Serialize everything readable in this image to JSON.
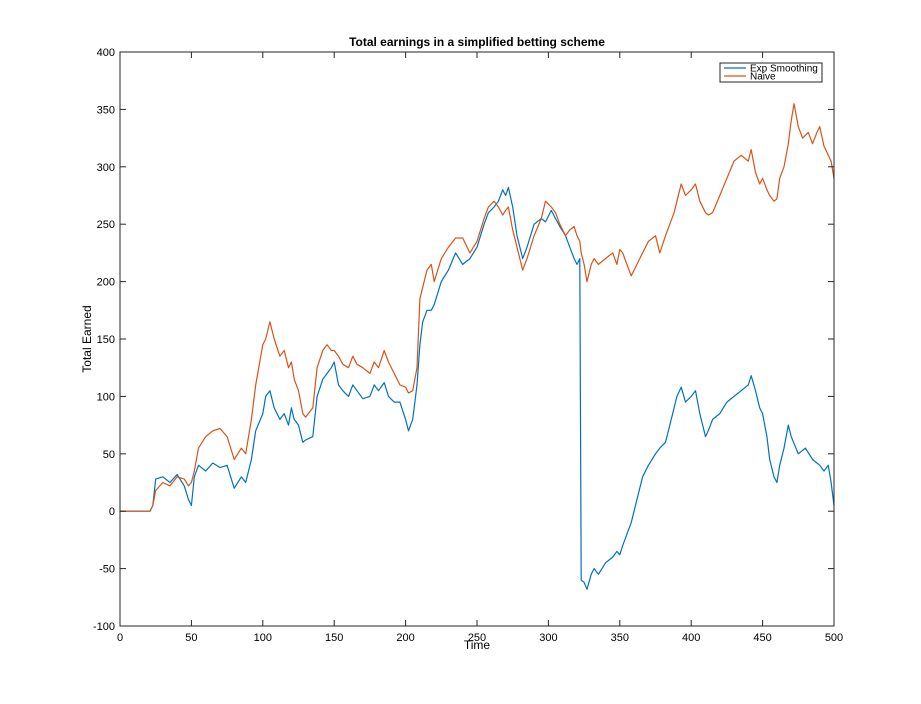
{
  "chart_data": {
    "type": "line",
    "title": "Total earnings in a  simplified betting scheme",
    "xlabel": "Time",
    "ylabel": "Total Earned",
    "xlim": [
      0,
      500
    ],
    "ylim": [
      -100,
      400
    ],
    "xticks": [
      0,
      50,
      100,
      150,
      200,
      250,
      300,
      350,
      400,
      450,
      500
    ],
    "yticks": [
      -100,
      -50,
      0,
      50,
      100,
      150,
      200,
      250,
      300,
      350,
      400
    ],
    "grid": false,
    "legend_position": "top-right",
    "series": [
      {
        "name": "Exp Smoothing",
        "color": "#0072BD",
        "points": [
          [
            0,
            0
          ],
          [
            21,
            0
          ],
          [
            23,
            5
          ],
          [
            25,
            28
          ],
          [
            30,
            30
          ],
          [
            35,
            25
          ],
          [
            40,
            32
          ],
          [
            45,
            22
          ],
          [
            48,
            10
          ],
          [
            50,
            5
          ],
          [
            52,
            30
          ],
          [
            55,
            40
          ],
          [
            60,
            35
          ],
          [
            65,
            42
          ],
          [
            70,
            38
          ],
          [
            75,
            40
          ],
          [
            80,
            20
          ],
          [
            85,
            30
          ],
          [
            88,
            25
          ],
          [
            92,
            45
          ],
          [
            95,
            70
          ],
          [
            100,
            85
          ],
          [
            102,
            100
          ],
          [
            105,
            105
          ],
          [
            108,
            90
          ],
          [
            112,
            80
          ],
          [
            115,
            85
          ],
          [
            118,
            75
          ],
          [
            120,
            90
          ],
          [
            122,
            80
          ],
          [
            125,
            75
          ],
          [
            128,
            60
          ],
          [
            130,
            62
          ],
          [
            135,
            65
          ],
          [
            138,
            100
          ],
          [
            142,
            115
          ],
          [
            145,
            120
          ],
          [
            148,
            125
          ],
          [
            150,
            130
          ],
          [
            153,
            110
          ],
          [
            156,
            105
          ],
          [
            160,
            100
          ],
          [
            163,
            110
          ],
          [
            166,
            105
          ],
          [
            170,
            98
          ],
          [
            175,
            100
          ],
          [
            178,
            110
          ],
          [
            181,
            105
          ],
          [
            185,
            112
          ],
          [
            188,
            100
          ],
          [
            192,
            95
          ],
          [
            196,
            95
          ],
          [
            200,
            80
          ],
          [
            202,
            70
          ],
          [
            205,
            80
          ],
          [
            208,
            110
          ],
          [
            210,
            145
          ],
          [
            212,
            165
          ],
          [
            215,
            175
          ],
          [
            218,
            175
          ],
          [
            220,
            180
          ],
          [
            225,
            200
          ],
          [
            230,
            210
          ],
          [
            235,
            225
          ],
          [
            240,
            215
          ],
          [
            245,
            220
          ],
          [
            250,
            230
          ],
          [
            255,
            250
          ],
          [
            258,
            260
          ],
          [
            262,
            265
          ],
          [
            265,
            270
          ],
          [
            268,
            280
          ],
          [
            270,
            275
          ],
          [
            272,
            282
          ],
          [
            275,
            265
          ],
          [
            278,
            240
          ],
          [
            282,
            220
          ],
          [
            285,
            230
          ],
          [
            290,
            250
          ],
          [
            295,
            255
          ],
          [
            298,
            252
          ],
          [
            302,
            262
          ],
          [
            305,
            255
          ],
          [
            308,
            248
          ],
          [
            312,
            240
          ],
          [
            315,
            230
          ],
          [
            318,
            220
          ],
          [
            320,
            215
          ],
          [
            322,
            220
          ],
          [
            323,
            -60
          ],
          [
            325,
            -62
          ],
          [
            327,
            -68
          ],
          [
            330,
            -55
          ],
          [
            332,
            -50
          ],
          [
            335,
            -55
          ],
          [
            340,
            -45
          ],
          [
            345,
            -40
          ],
          [
            348,
            -35
          ],
          [
            350,
            -38
          ],
          [
            352,
            -30
          ],
          [
            355,
            -20
          ],
          [
            358,
            -10
          ],
          [
            362,
            10
          ],
          [
            366,
            30
          ],
          [
            370,
            40
          ],
          [
            375,
            50
          ],
          [
            378,
            55
          ],
          [
            382,
            60
          ],
          [
            385,
            75
          ],
          [
            388,
            90
          ],
          [
            390,
            100
          ],
          [
            393,
            108
          ],
          [
            396,
            95
          ],
          [
            400,
            100
          ],
          [
            403,
            105
          ],
          [
            406,
            85
          ],
          [
            410,
            65
          ],
          [
            412,
            70
          ],
          [
            415,
            80
          ],
          [
            420,
            85
          ],
          [
            425,
            95
          ],
          [
            430,
            100
          ],
          [
            435,
            105
          ],
          [
            440,
            110
          ],
          [
            442,
            118
          ],
          [
            445,
            105
          ],
          [
            448,
            90
          ],
          [
            450,
            85
          ],
          [
            453,
            65
          ],
          [
            455,
            45
          ],
          [
            458,
            30
          ],
          [
            460,
            25
          ],
          [
            462,
            40
          ],
          [
            465,
            55
          ],
          [
            468,
            75
          ],
          [
            470,
            65
          ],
          [
            475,
            50
          ],
          [
            480,
            55
          ],
          [
            485,
            45
          ],
          [
            490,
            40
          ],
          [
            493,
            35
          ],
          [
            496,
            40
          ],
          [
            498,
            25
          ],
          [
            500,
            5
          ]
        ]
      },
      {
        "name": "Naive",
        "color": "#D95319",
        "points": [
          [
            0,
            0
          ],
          [
            21,
            0
          ],
          [
            23,
            5
          ],
          [
            25,
            18
          ],
          [
            30,
            25
          ],
          [
            35,
            22
          ],
          [
            40,
            30
          ],
          [
            45,
            28
          ],
          [
            48,
            22
          ],
          [
            50,
            25
          ],
          [
            52,
            35
          ],
          [
            55,
            55
          ],
          [
            60,
            65
          ],
          [
            65,
            70
          ],
          [
            70,
            72
          ],
          [
            75,
            65
          ],
          [
            80,
            45
          ],
          [
            85,
            55
          ],
          [
            88,
            50
          ],
          [
            92,
            80
          ],
          [
            95,
            110
          ],
          [
            100,
            145
          ],
          [
            102,
            150
          ],
          [
            105,
            165
          ],
          [
            108,
            150
          ],
          [
            112,
            135
          ],
          [
            115,
            140
          ],
          [
            118,
            125
          ],
          [
            120,
            130
          ],
          [
            122,
            115
          ],
          [
            125,
            105
          ],
          [
            128,
            85
          ],
          [
            130,
            82
          ],
          [
            135,
            90
          ],
          [
            138,
            125
          ],
          [
            142,
            140
          ],
          [
            145,
            145
          ],
          [
            148,
            140
          ],
          [
            150,
            140
          ],
          [
            153,
            135
          ],
          [
            156,
            128
          ],
          [
            160,
            125
          ],
          [
            163,
            135
          ],
          [
            166,
            128
          ],
          [
            170,
            125
          ],
          [
            175,
            120
          ],
          [
            178,
            130
          ],
          [
            181,
            125
          ],
          [
            185,
            140
          ],
          [
            188,
            130
          ],
          [
            192,
            120
          ],
          [
            196,
            110
          ],
          [
            200,
            108
          ],
          [
            202,
            103
          ],
          [
            205,
            105
          ],
          [
            208,
            125
          ],
          [
            210,
            185
          ],
          [
            212,
            195
          ],
          [
            215,
            210
          ],
          [
            218,
            215
          ],
          [
            220,
            200
          ],
          [
            225,
            220
          ],
          [
            230,
            230
          ],
          [
            235,
            238
          ],
          [
            240,
            238
          ],
          [
            245,
            225
          ],
          [
            250,
            235
          ],
          [
            255,
            255
          ],
          [
            258,
            265
          ],
          [
            262,
            270
          ],
          [
            265,
            265
          ],
          [
            268,
            258
          ],
          [
            270,
            262
          ],
          [
            272,
            265
          ],
          [
            275,
            245
          ],
          [
            278,
            230
          ],
          [
            282,
            210
          ],
          [
            285,
            220
          ],
          [
            290,
            240
          ],
          [
            295,
            255
          ],
          [
            298,
            270
          ],
          [
            302,
            265
          ],
          [
            305,
            260
          ],
          [
            308,
            250
          ],
          [
            312,
            240
          ],
          [
            315,
            245
          ],
          [
            318,
            248
          ],
          [
            320,
            240
          ],
          [
            322,
            235
          ],
          [
            323,
            225
          ],
          [
            325,
            215
          ],
          [
            327,
            200
          ],
          [
            330,
            215
          ],
          [
            332,
            220
          ],
          [
            335,
            215
          ],
          [
            340,
            220
          ],
          [
            345,
            225
          ],
          [
            348,
            215
          ],
          [
            350,
            228
          ],
          [
            352,
            225
          ],
          [
            355,
            215
          ],
          [
            358,
            205
          ],
          [
            362,
            215
          ],
          [
            366,
            225
          ],
          [
            370,
            235
          ],
          [
            375,
            240
          ],
          [
            378,
            225
          ],
          [
            382,
            240
          ],
          [
            385,
            250
          ],
          [
            388,
            260
          ],
          [
            390,
            270
          ],
          [
            393,
            285
          ],
          [
            396,
            275
          ],
          [
            400,
            280
          ],
          [
            403,
            285
          ],
          [
            406,
            270
          ],
          [
            410,
            260
          ],
          [
            412,
            258
          ],
          [
            415,
            260
          ],
          [
            420,
            275
          ],
          [
            425,
            290
          ],
          [
            430,
            305
          ],
          [
            435,
            310
          ],
          [
            440,
            305
          ],
          [
            442,
            315
          ],
          [
            445,
            295
          ],
          [
            448,
            285
          ],
          [
            450,
            290
          ],
          [
            453,
            280
          ],
          [
            455,
            275
          ],
          [
            458,
            270
          ],
          [
            460,
            272
          ],
          [
            462,
            290
          ],
          [
            465,
            300
          ],
          [
            468,
            320
          ],
          [
            470,
            340
          ],
          [
            472,
            355
          ],
          [
            475,
            335
          ],
          [
            478,
            325
          ],
          [
            482,
            330
          ],
          [
            485,
            320
          ],
          [
            488,
            330
          ],
          [
            490,
            335
          ],
          [
            493,
            318
          ],
          [
            496,
            310
          ],
          [
            498,
            305
          ],
          [
            500,
            290
          ]
        ]
      }
    ]
  }
}
